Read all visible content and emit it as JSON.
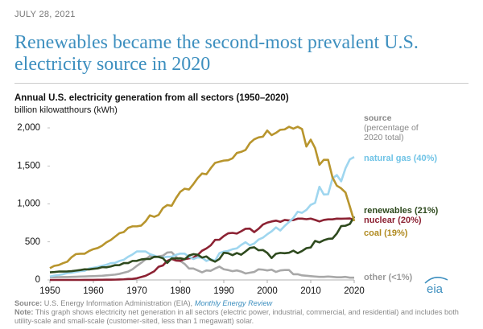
{
  "date": "JULY 28, 2021",
  "headline": [
    "Renewables became the second-most prevalent U.S.",
    "electricity source in 2020"
  ],
  "chart_data": {
    "type": "line",
    "title": "Annual U.S. electricity generation from all sectors (1950–2020)",
    "y_label": "billion kilowatthours (kWh)",
    "legend_title": "source",
    "legend_note": [
      "(percentage of",
      "2020 total)"
    ],
    "x": [
      1950,
      1951,
      1952,
      1953,
      1954,
      1955,
      1956,
      1957,
      1958,
      1959,
      1960,
      1961,
      1962,
      1963,
      1964,
      1965,
      1966,
      1967,
      1968,
      1969,
      1970,
      1971,
      1972,
      1973,
      1974,
      1975,
      1976,
      1977,
      1978,
      1979,
      1980,
      1981,
      1982,
      1983,
      1984,
      1985,
      1986,
      1987,
      1988,
      1989,
      1990,
      1991,
      1992,
      1993,
      1994,
      1995,
      1996,
      1997,
      1998,
      1999,
      2000,
      2001,
      2002,
      2003,
      2004,
      2005,
      2006,
      2007,
      2008,
      2009,
      2010,
      2011,
      2012,
      2013,
      2014,
      2015,
      2016,
      2017,
      2018,
      2019,
      2020
    ],
    "xlim": [
      1950,
      2020
    ],
    "xticks": [
      1950,
      1960,
      1970,
      1980,
      1990,
      2000,
      2010,
      2020
    ],
    "ylim": [
      0,
      2000
    ],
    "yticks": [
      0,
      500,
      {
        "value": 1000,
        "label": "1,000"
      },
      {
        "value": 1500,
        "label": "1,500"
      },
      {
        "value": 2000,
        "label": "2,000"
      }
    ],
    "series": [
      {
        "name": "other (<1%)",
        "color": "#a8a8a8",
        "values": [
          35,
          36,
          37,
          38,
          38,
          40,
          42,
          44,
          46,
          48,
          50,
          52,
          55,
          60,
          65,
          70,
          80,
          95,
          110,
          140,
          185,
          225,
          270,
          315,
          300,
          310,
          320,
          360,
          365,
          305,
          250,
          210,
          150,
          150,
          125,
          100,
          125,
          120,
          150,
          175,
          140,
          130,
          115,
          125,
          110,
          85,
          95,
          105,
          140,
          135,
          125,
          135,
          105,
          125,
          130,
          130,
          75,
          75,
          60,
          55,
          50,
          45,
          40,
          40,
          45,
          40,
          35,
          35,
          40,
          30,
          30
        ]
      },
      {
        "name": "nuclear (20%)",
        "color": "#8c2233",
        "values": [
          0,
          0,
          0,
          0,
          0,
          0,
          0,
          0,
          0.2,
          0.2,
          0.5,
          2,
          2,
          3,
          3,
          4,
          6,
          8,
          13,
          14,
          22,
          38,
          54,
          83,
          114,
          173,
          191,
          251,
          276,
          255,
          251,
          273,
          283,
          294,
          328,
          384,
          414,
          455,
          527,
          529,
          577,
          613,
          619,
          610,
          640,
          673,
          675,
          629,
          673,
          728,
          754,
          769,
          780,
          764,
          789,
          782,
          787,
          806,
          806,
          799,
          807,
          790,
          769,
          789,
          797,
          797,
          806,
          805,
          807,
          809,
          790
        ]
      },
      {
        "name": "natural gas (40%)",
        "color": "#9fd6ef",
        "values": [
          45,
          57,
          65,
          75,
          90,
          95,
          105,
          115,
          120,
          150,
          160,
          170,
          185,
          200,
          220,
          225,
          250,
          265,
          305,
          335,
          375,
          375,
          375,
          340,
          320,
          300,
          295,
          305,
          305,
          330,
          346,
          346,
          305,
          275,
          297,
          292,
          249,
          273,
          253,
          352,
          373,
          382,
          404,
          415,
          460,
          496,
          455,
          479,
          531,
          556,
          601,
          639,
          691,
          650,
          710,
          761,
          816,
          897,
          883,
          921,
          988,
          1014,
          1226,
          1124,
          1127,
          1335,
          1379,
          1297,
          1469,
          1586,
          1617
        ]
      },
      {
        "name": "renewables (21%)",
        "color": "#2e4a1e",
        "values": [
          100,
          104,
          110,
          110,
          112,
          116,
          123,
          130,
          140,
          138,
          146,
          152,
          168,
          166,
          177,
          194,
          195,
          222,
          222,
          250,
          251,
          269,
          276,
          275,
          305,
          303,
          286,
          224,
          283,
          283,
          285,
          272,
          321,
          339,
          332,
          294,
          309,
          265,
          240,
          276,
          357,
          351,
          326,
          354,
          332,
          374,
          420,
          429,
          390,
          394,
          356,
          288,
          344,
          356,
          351,
          358,
          385,
          352,
          380,
          418,
          427,
          513,
          494,
          522,
          540,
          544,
          610,
          708,
          713,
          736,
          834
        ]
      },
      {
        "name": "coal (19%)",
        "color": "#b8952d",
        "values": [
          155,
          185,
          195,
          220,
          240,
          300,
          340,
          345,
          345,
          380,
          405,
          420,
          450,
          495,
          525,
          570,
          615,
          630,
          685,
          705,
          705,
          715,
          770,
          850,
          830,
          855,
          945,
          985,
          975,
          1075,
          1160,
          1200,
          1190,
          1260,
          1340,
          1400,
          1390,
          1470,
          1540,
          1555,
          1570,
          1575,
          1600,
          1670,
          1685,
          1710,
          1800,
          1850,
          1875,
          1885,
          1965,
          1905,
          1935,
          1975,
          1980,
          2015,
          1990,
          2015,
          1985,
          1755,
          1845,
          1735,
          1515,
          1580,
          1580,
          1350,
          1240,
          1205,
          1150,
          965,
          774
        ]
      }
    ]
  },
  "logo": "eia",
  "source": {
    "label": "Source:",
    "text": "U.S. Energy Information Administration (EIA),",
    "link": "Monthly Energy Review"
  },
  "note": {
    "label": "Note:",
    "text": "This graph shows electricity net generation in all sectors (electric power, industrial, commercial, and residential) and includes both utility-scale and small-scale (customer-sited, less than 1 megawatt) solar."
  }
}
